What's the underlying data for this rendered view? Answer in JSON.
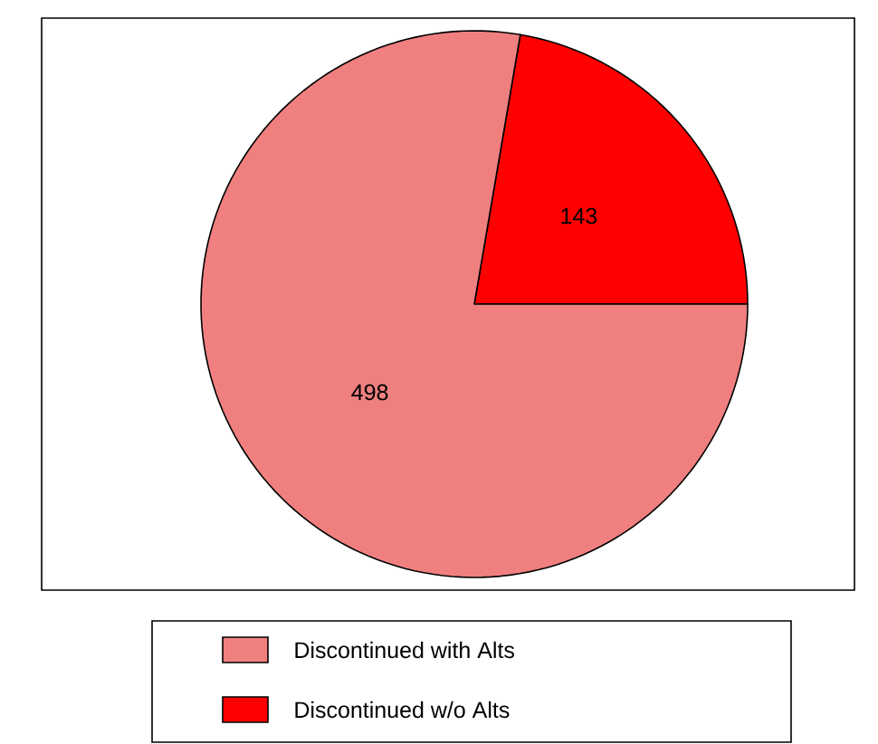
{
  "chart_data": {
    "type": "pie",
    "categories": [
      "Discontinued with Alts",
      "Discontinued w/o Alts"
    ],
    "values": [
      498,
      143
    ],
    "colors": [
      "#f08080",
      "#ff0000"
    ],
    "data_labels": true,
    "legend": "bottom"
  }
}
